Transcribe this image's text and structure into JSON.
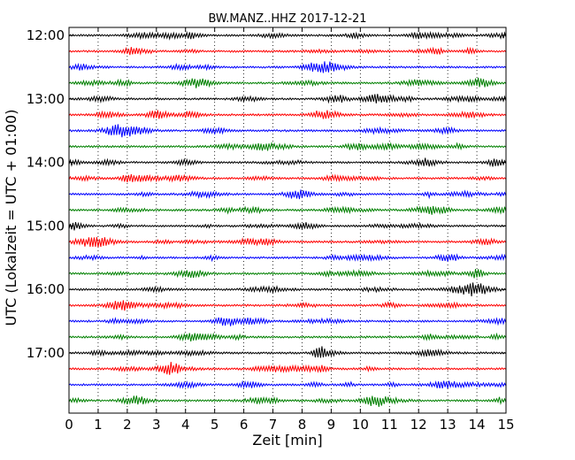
{
  "chart_data": {
    "type": "line",
    "title": "BW.MANZ..HHZ 2017-12-21",
    "xlabel": "Zeit  [min]",
    "ylabel": "UTC (Lokalzeit = UTC + 01:00)",
    "xlim": [
      0,
      15
    ],
    "x_ticks": [
      "0",
      "1",
      "2",
      "3",
      "4",
      "5",
      "6",
      "7",
      "8",
      "9",
      "10",
      "11",
      "12",
      "13",
      "14",
      "15"
    ],
    "y_tick_labels": [
      "12:00",
      "13:00",
      "14:00",
      "15:00",
      "16:00",
      "17:00"
    ],
    "grid": "vertical dotted at each minute",
    "series": [
      {
        "start": "12:00",
        "color": "#000000"
      },
      {
        "start": "12:15",
        "color": "#ff0000"
      },
      {
        "start": "12:30",
        "color": "#0000ff"
      },
      {
        "start": "12:45",
        "color": "#008000"
      },
      {
        "start": "13:00",
        "color": "#000000"
      },
      {
        "start": "13:15",
        "color": "#ff0000"
      },
      {
        "start": "13:30",
        "color": "#0000ff"
      },
      {
        "start": "13:45",
        "color": "#008000"
      },
      {
        "start": "14:00",
        "color": "#000000"
      },
      {
        "start": "14:15",
        "color": "#ff0000"
      },
      {
        "start": "14:30",
        "color": "#0000ff"
      },
      {
        "start": "14:45",
        "color": "#008000"
      },
      {
        "start": "15:00",
        "color": "#000000"
      },
      {
        "start": "15:15",
        "color": "#ff0000"
      },
      {
        "start": "15:30",
        "color": "#0000ff"
      },
      {
        "start": "15:45",
        "color": "#008000"
      },
      {
        "start": "16:00",
        "color": "#000000"
      },
      {
        "start": "16:15",
        "color": "#ff0000"
      },
      {
        "start": "16:30",
        "color": "#0000ff"
      },
      {
        "start": "16:45",
        "color": "#008000"
      },
      {
        "start": "17:00",
        "color": "#000000"
      },
      {
        "start": "17:15",
        "color": "#ff0000"
      },
      {
        "start": "17:30",
        "color": "#0000ff"
      },
      {
        "start": "17:45",
        "color": "#008000"
      }
    ]
  }
}
